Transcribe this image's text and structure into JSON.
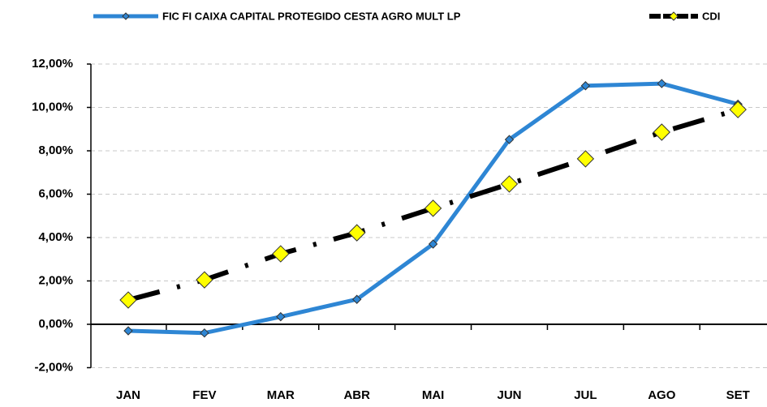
{
  "chart_data": {
    "type": "line",
    "categories": [
      "JAN",
      "FEV",
      "MAR",
      "ABR",
      "MAI",
      "JUN",
      "JUL",
      "AGO",
      "SET"
    ],
    "series": [
      {
        "name": "FIC FI CAIXA CAPITAL PROTEGIDO CESTA AGRO MULT LP",
        "color": "#2e86d4",
        "marker_color": "#2e86d4",
        "dash": "solid",
        "values": [
          -0.3,
          -0.4,
          0.35,
          1.15,
          3.7,
          8.52,
          11.0,
          11.1,
          10.15
        ]
      },
      {
        "name": "CDI",
        "color": "#000000",
        "marker_color": "#ffff00",
        "dash": "dashdot",
        "values": [
          1.12,
          2.05,
          3.25,
          4.22,
          5.35,
          6.47,
          7.63,
          8.86,
          9.9
        ]
      }
    ],
    "ylim": [
      -2,
      12
    ],
    "yticks": [
      {
        "value": -2,
        "label": "-2,00%"
      },
      {
        "value": 0,
        "label": "0,00%"
      },
      {
        "value": 2,
        "label": "2,00%"
      },
      {
        "value": 4,
        "label": "4,00%"
      },
      {
        "value": 6,
        "label": "6,00%"
      },
      {
        "value": 8,
        "label": "8,00%"
      },
      {
        "value": 10,
        "label": "10,00%"
      },
      {
        "value": 12,
        "label": "12,00%"
      }
    ],
    "grid": true,
    "legend": "top"
  }
}
